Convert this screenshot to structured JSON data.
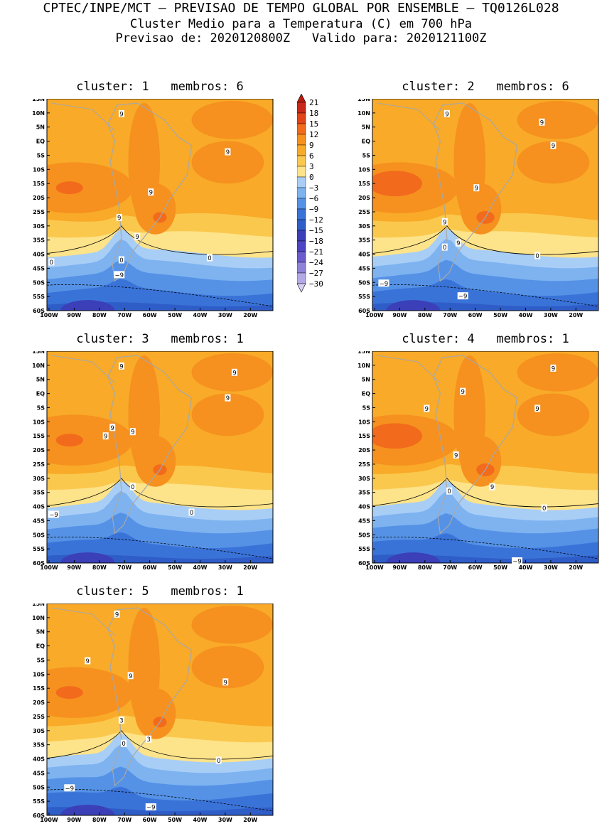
{
  "header": {
    "line1": "CPTEC/INPE/MCT – PREVISAO DE TEMPO GLOBAL POR ENSEMBLE – TQ0126L028",
    "line2": "Cluster Medio para a Temperatura (C) em 700 hPa",
    "line3": "Previsao de: 2020120800Z   Valido para: 2020121100Z"
  },
  "axes": {
    "lat_labels": [
      "15N",
      "10N",
      "5N",
      "EQ",
      "5S",
      "10S",
      "15S",
      "20S",
      "25S",
      "30S",
      "35S",
      "40S",
      "45S",
      "50S",
      "55S",
      "60S"
    ],
    "lon_labels": [
      "100W",
      "90W",
      "80W",
      "70W",
      "60W",
      "50W",
      "40W",
      "30W",
      "20W"
    ]
  },
  "colorbar": {
    "labels": [
      "21",
      "18",
      "15",
      "12",
      "9",
      "6",
      "3",
      "0",
      "−3",
      "−6",
      "−9",
      "−12",
      "−15",
      "−18",
      "−21",
      "−24",
      "−27",
      "−30"
    ],
    "colors": [
      "#b81c10",
      "#c8281a",
      "#e04418",
      "#f26a1c",
      "#f6901e",
      "#f8aa28",
      "#fbc84e",
      "#fde38a",
      "#a9cef6",
      "#7eb3f0",
      "#5592e6",
      "#3a73d8",
      "#2f5dc8",
      "#3b3fb8",
      "#4d45c4",
      "#6a5ccc",
      "#8e82d8",
      "#b4a9e6",
      "#d8d0f2"
    ]
  },
  "panels": [
    {
      "title": "cluster: 1   membros: 6",
      "labels": [
        {
          "t": "9"
        },
        {
          "t": "9"
        },
        {
          "t": "9"
        },
        {
          "t": "9"
        },
        {
          "t": "9"
        },
        {
          "t": "0"
        },
        {
          "t": "0"
        },
        {
          "t": "0"
        },
        {
          "t": "−9"
        }
      ]
    },
    {
      "title": "cluster: 2   membros: 6",
      "labels": [
        {
          "t": "9"
        },
        {
          "t": "9"
        },
        {
          "t": "9"
        },
        {
          "t": "9"
        },
        {
          "t": "9"
        },
        {
          "t": "9"
        },
        {
          "t": "0"
        },
        {
          "t": "0"
        },
        {
          "t": "−9"
        },
        {
          "t": "−9"
        }
      ]
    },
    {
      "title": "cluster: 3   membros: 1",
      "labels": [
        {
          "t": "9"
        },
        {
          "t": "9"
        },
        {
          "t": "9"
        },
        {
          "t": "9"
        },
        {
          "t": "9"
        },
        {
          "t": "9"
        },
        {
          "t": "0"
        },
        {
          "t": "0"
        },
        {
          "t": "−9"
        }
      ]
    },
    {
      "title": "cluster: 4   membros: 1",
      "labels": [
        {
          "t": "9"
        },
        {
          "t": "9"
        },
        {
          "t": "9"
        },
        {
          "t": "9"
        },
        {
          "t": "9"
        },
        {
          "t": "9"
        },
        {
          "t": "0"
        },
        {
          "t": "0"
        },
        {
          "t": "−9"
        }
      ]
    },
    {
      "title": "cluster: 5   membros: 1",
      "labels": [
        {
          "t": "9"
        },
        {
          "t": "9"
        },
        {
          "t": "9"
        },
        {
          "t": "9"
        },
        {
          "t": "3"
        },
        {
          "t": "3"
        },
        {
          "t": "0"
        },
        {
          "t": "0"
        },
        {
          "t": "−9"
        },
        {
          "t": "−9"
        }
      ]
    }
  ]
}
